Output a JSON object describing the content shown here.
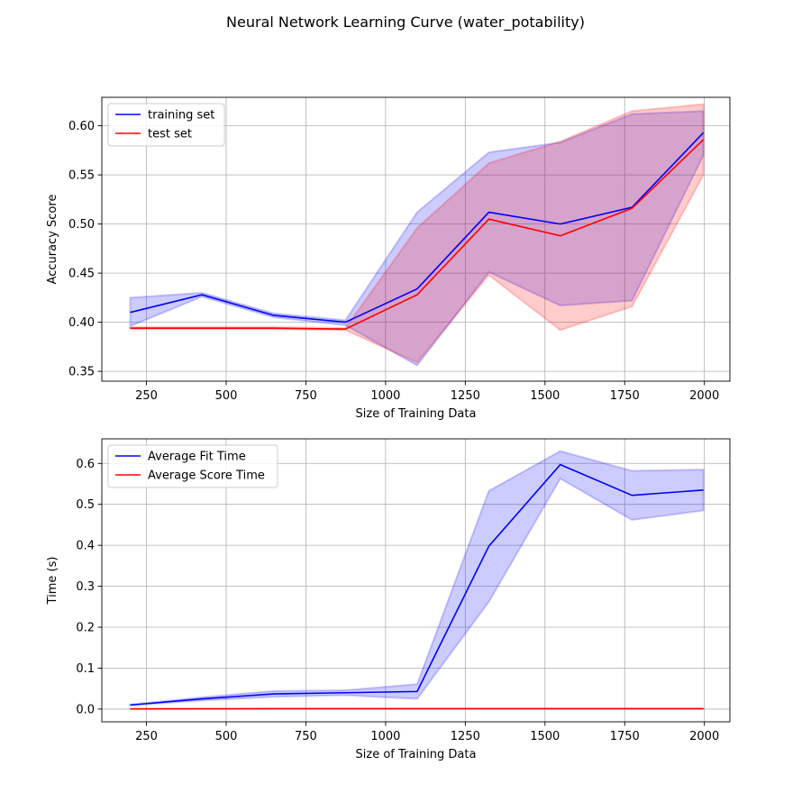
{
  "figure": {
    "title": "Neural Network Learning Curve (water_potability)"
  },
  "chart_data": [
    {
      "type": "line",
      "xlabel": "Size of Training Data",
      "ylabel": "Accuracy Score",
      "xlim": [
        110,
        2080
      ],
      "ylim": [
        0.34,
        0.629
      ],
      "xticks": [
        250,
        500,
        750,
        1000,
        1250,
        1500,
        1750,
        2000
      ],
      "yticks": [
        0.35,
        0.4,
        0.45,
        0.5,
        0.55,
        0.6
      ],
      "ytick_format": 2,
      "grid": true,
      "legend_position": "upper-left",
      "x": [
        199,
        424,
        649,
        874,
        1099,
        1324,
        1548,
        1773,
        1997
      ],
      "series": [
        {
          "name": "training set",
          "color": "#0000ff",
          "values": [
            0.41,
            0.428,
            0.407,
            0.4,
            0.434,
            0.512,
            0.5,
            0.517,
            0.593
          ],
          "lower": [
            0.396,
            0.426,
            0.405,
            0.397,
            0.356,
            0.451,
            0.417,
            0.422,
            0.57
          ],
          "upper": [
            0.425,
            0.43,
            0.409,
            0.402,
            0.512,
            0.573,
            0.583,
            0.612,
            0.615
          ]
        },
        {
          "name": "test set",
          "color": "#ff0000",
          "values": [
            0.394,
            0.394,
            0.394,
            0.393,
            0.428,
            0.505,
            0.488,
            0.516,
            0.586
          ],
          "lower": [
            0.393,
            0.393,
            0.393,
            0.392,
            0.359,
            0.448,
            0.392,
            0.416,
            0.55
          ],
          "upper": [
            0.395,
            0.395,
            0.395,
            0.394,
            0.496,
            0.562,
            0.584,
            0.615,
            0.622
          ]
        }
      ]
    },
    {
      "type": "line",
      "xlabel": "Size of Training Data",
      "ylabel": "Time (s)",
      "xlim": [
        110,
        2080
      ],
      "ylim": [
        -0.031,
        0.66
      ],
      "xticks": [
        250,
        500,
        750,
        1000,
        1250,
        1500,
        1750,
        2000
      ],
      "yticks": [
        0.0,
        0.1,
        0.2,
        0.3,
        0.4,
        0.5,
        0.6
      ],
      "ytick_format": 1,
      "grid": true,
      "legend_position": "upper-left",
      "x": [
        199,
        424,
        649,
        874,
        1099,
        1324,
        1548,
        1773,
        1997
      ],
      "series": [
        {
          "name": "Average Fit Time",
          "color": "#0000ff",
          "values": [
            0.01,
            0.025,
            0.037,
            0.04,
            0.043,
            0.398,
            0.597,
            0.522,
            0.535
          ],
          "lower": [
            0.009,
            0.021,
            0.03,
            0.034,
            0.025,
            0.262,
            0.563,
            0.462,
            0.485
          ],
          "upper": [
            0.011,
            0.029,
            0.044,
            0.046,
            0.061,
            0.533,
            0.63,
            0.582,
            0.585
          ]
        },
        {
          "name": "Average Score Time",
          "color": "#ff0000",
          "values": [
            0.0005,
            0.0008,
            0.001,
            0.001,
            0.001,
            0.001,
            0.001,
            0.001,
            0.001
          ],
          "lower": [
            0.0004,
            0.0007,
            0.0009,
            0.0009,
            0.0009,
            0.0009,
            0.0009,
            0.0009,
            0.0009
          ],
          "upper": [
            0.0006,
            0.0009,
            0.0011,
            0.0011,
            0.0011,
            0.0011,
            0.0011,
            0.0011,
            0.0011
          ]
        }
      ]
    }
  ]
}
